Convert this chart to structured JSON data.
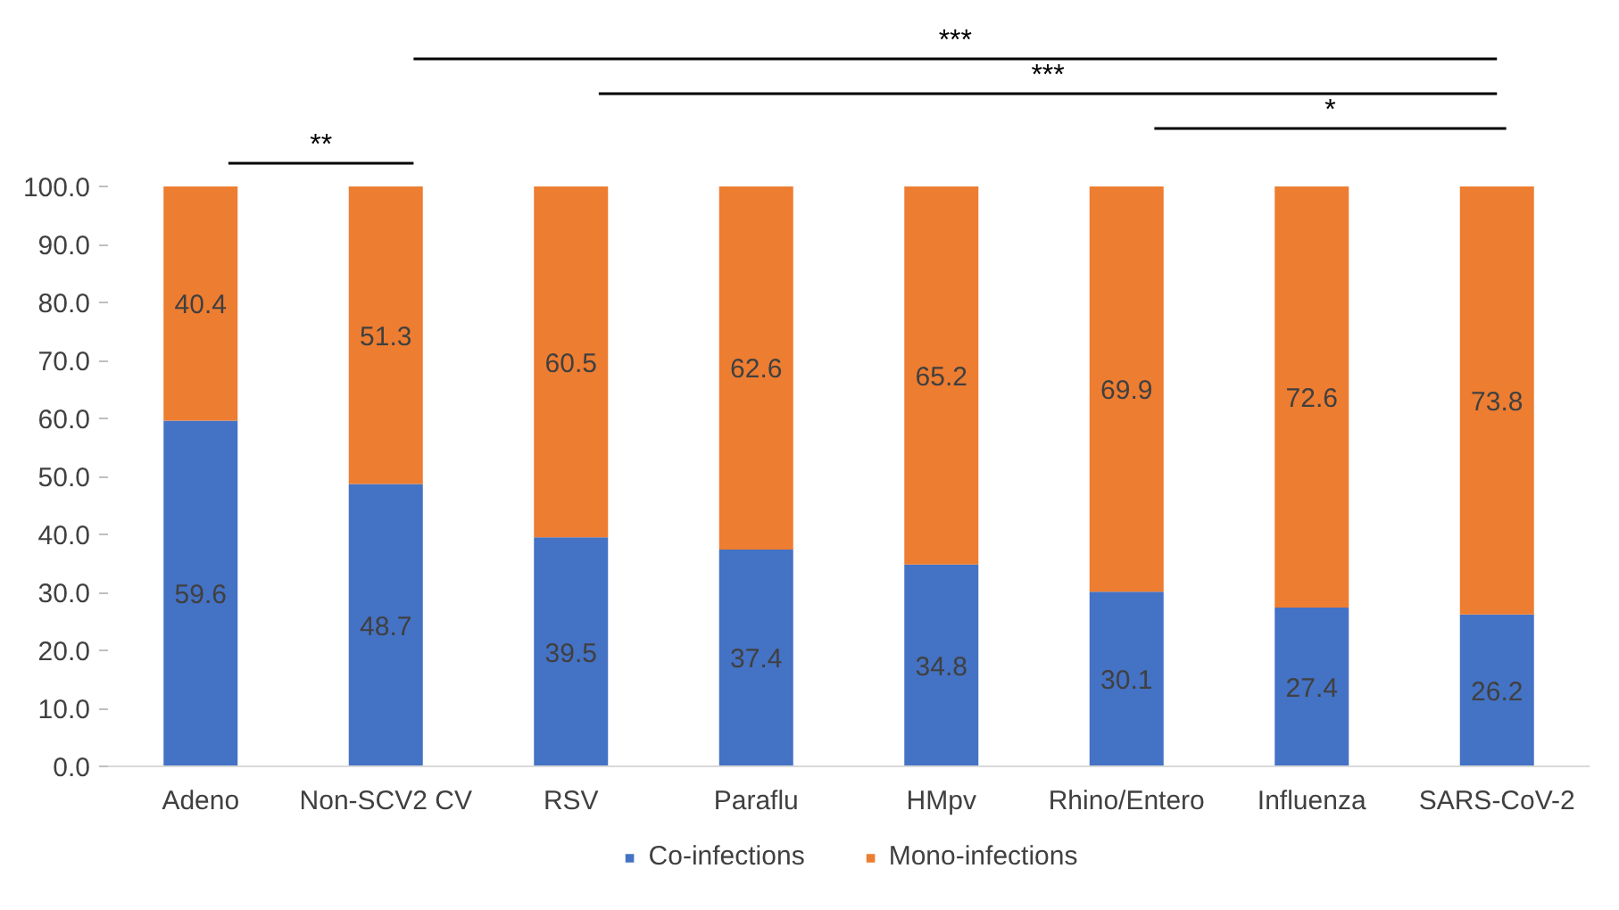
{
  "chart_data": {
    "type": "bar",
    "stacked": true,
    "categories": [
      "Adeno",
      "Non-SCV2 CV",
      "RSV",
      "Paraflu",
      "HMpv",
      "Rhino/Entero",
      "Influenza",
      "SARS-CoV-2"
    ],
    "series": [
      {
        "name": "Co-infections",
        "color": "#4472c4",
        "values": [
          59.6,
          48.7,
          39.5,
          37.4,
          34.8,
          30.1,
          27.4,
          26.2
        ]
      },
      {
        "name": "Mono-infections",
        "color": "#ed7d31",
        "values": [
          40.4,
          51.3,
          60.5,
          62.6,
          65.2,
          69.9,
          72.6,
          73.8
        ]
      }
    ],
    "ylim": [
      0,
      100
    ],
    "yticks": [
      {
        "value": 0,
        "label": "0.0"
      },
      {
        "value": 10,
        "label": "10.0"
      },
      {
        "value": 20,
        "label": "20.0"
      },
      {
        "value": 30,
        "label": "30.0"
      },
      {
        "value": 40,
        "label": "40.0"
      },
      {
        "value": 50,
        "label": "50.0"
      },
      {
        "value": 60,
        "label": "60.0"
      },
      {
        "value": 70,
        "label": "70.0"
      },
      {
        "value": 80,
        "label": "80.0"
      },
      {
        "value": 90,
        "label": "90.0"
      },
      {
        "value": 100,
        "label": "100.0"
      }
    ],
    "data_labels": true,
    "grid": false,
    "legend": "bottom",
    "annotations": [
      "**",
      "***",
      "***",
      "*"
    ]
  }
}
